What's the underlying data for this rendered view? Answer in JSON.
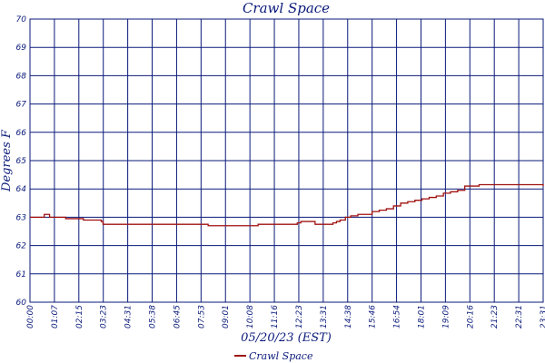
{
  "chart_data": {
    "type": "line",
    "title": "Crawl Space",
    "xlabel": "05/20/23 (EST)",
    "ylabel": "Degrees F",
    "ylim": [
      60,
      70
    ],
    "yticks": [
      60,
      61,
      62,
      63,
      64,
      65,
      66,
      67,
      68,
      69,
      70
    ],
    "xlim_minutes": [
      0,
      1440
    ],
    "xtick_labels": [
      "00:00",
      "01:07",
      "02:15",
      "03:23",
      "04:31",
      "05:38",
      "06:45",
      "07:53",
      "09:01",
      "10:08",
      "11:16",
      "12:23",
      "13:31",
      "14:38",
      "15:46",
      "16:54",
      "18:01",
      "19:09",
      "20:16",
      "21:23",
      "22:31",
      "23:31"
    ],
    "grid": true,
    "legend_position": "bottom-center",
    "series": [
      {
        "name": "Crawl Space",
        "color": "#a01010",
        "x_minutes": [
          0,
          10,
          30,
          40,
          55,
          100,
          150,
          200,
          205,
          300,
          400,
          500,
          560,
          600,
          640,
          660,
          700,
          750,
          760,
          800,
          830,
          850,
          860,
          870,
          885,
          900,
          920,
          940,
          960,
          980,
          1000,
          1020,
          1040,
          1060,
          1080,
          1100,
          1120,
          1140,
          1160,
          1180,
          1200,
          1220,
          1260,
          1300,
          1350,
          1400,
          1440
        ],
        "values": [
          63.0,
          63.0,
          63.0,
          63.1,
          63.0,
          62.95,
          62.9,
          62.85,
          62.75,
          62.75,
          62.75,
          62.7,
          62.7,
          62.7,
          62.75,
          62.75,
          62.75,
          62.8,
          62.85,
          62.75,
          62.75,
          62.8,
          62.85,
          62.9,
          63.0,
          63.05,
          63.1,
          63.1,
          63.2,
          63.25,
          63.3,
          63.4,
          63.5,
          63.55,
          63.6,
          63.65,
          63.7,
          63.75,
          63.85,
          63.9,
          63.95,
          64.1,
          64.15,
          64.15,
          64.15,
          64.15,
          64.1
        ]
      }
    ]
  }
}
